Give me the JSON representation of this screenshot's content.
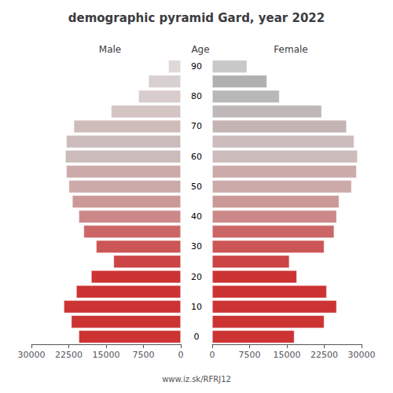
{
  "chart_data": {
    "type": "bar",
    "orientation": "horizontal",
    "title": "demographic pyramid Gard, year 2022",
    "ylabel": "Age",
    "annotations": [
      "www.iz.sk/RFRJ12"
    ],
    "categories": [
      0,
      null,
      10,
      null,
      20,
      null,
      30,
      null,
      40,
      null,
      50,
      null,
      60,
      null,
      70,
      null,
      80,
      null,
      90
    ],
    "series": [
      {
        "name": "Male",
        "values": [
          20500,
          22000,
          23500,
          21000,
          18000,
          13500,
          17000,
          19500,
          20500,
          21800,
          22500,
          23000,
          23200,
          23000,
          21500,
          14000,
          8500,
          6500,
          2500
        ],
        "colors": [
          "#cc3333",
          "#cc3333",
          "#cc3333",
          "#cc3333",
          "#cc3333",
          "#cc4444",
          "#cc5555",
          "#cc6666",
          "#cc8888",
          "#cc9999",
          "#ccaaaa",
          "#ccaaaa",
          "#ccbbbb",
          "#ccbbbb",
          "#d0bbbb",
          "#d4c4c4",
          "#d8cccc",
          "#d8d0d0",
          "#e0d8d8"
        ]
      },
      {
        "name": "Female",
        "values": [
          16500,
          22500,
          25000,
          23000,
          17000,
          15500,
          22500,
          24500,
          25000,
          25500,
          28000,
          29000,
          29200,
          28500,
          27000,
          22000,
          13500,
          11000,
          7000
        ],
        "colors": [
          "#cc3333",
          "#cc3333",
          "#cc3333",
          "#cc3333",
          "#cc3333",
          "#cc4444",
          "#cc5555",
          "#cc6666",
          "#cc8888",
          "#cc9999",
          "#ccaaaa",
          "#ccaaaa",
          "#ccbbbb",
          "#ccbbbb",
          "#c4b4b4",
          "#c0b8b8",
          "#b8b8b8",
          "#b0b0b0",
          "#c8c8c8"
        ]
      }
    ],
    "xlim": [
      0,
      30000
    ],
    "xticks": [
      0,
      7500,
      15000,
      22500,
      30000
    ],
    "grid": false
  }
}
